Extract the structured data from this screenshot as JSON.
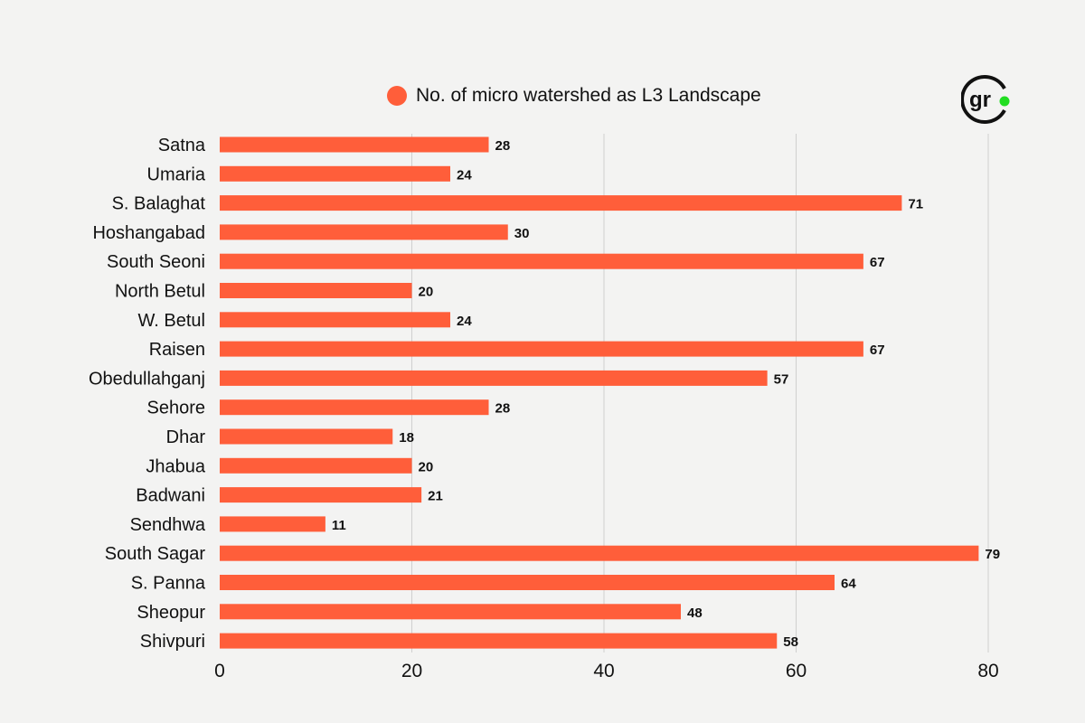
{
  "chart_data": {
    "type": "bar",
    "orientation": "horizontal",
    "title": "",
    "xlabel": "",
    "ylabel": "",
    "xlim": [
      0,
      80
    ],
    "xticks": [
      0,
      20,
      40,
      60,
      80
    ],
    "grid": true,
    "legend_position": "top-center",
    "series": [
      {
        "name": "No. of micro watershed as L3 Landscape",
        "color": "#ff5e3a"
      }
    ],
    "categories": [
      "Satna",
      "Umaria",
      "S. Balaghat",
      "Hoshangabad",
      "South Seoni",
      "North Betul",
      "W. Betul",
      "Raisen",
      "Obedullahganj",
      "Sehore",
      "Dhar",
      "Jhabua",
      "Badwani",
      "Sendhwa",
      "South Sagar",
      "S. Panna",
      "Sheopur",
      "Shivpuri"
    ],
    "values": [
      28,
      24,
      71,
      30,
      67,
      20,
      24,
      67,
      57,
      28,
      18,
      20,
      21,
      11,
      79,
      64,
      48,
      58
    ]
  },
  "logo": {
    "text": "gr",
    "accent": "#22dd22"
  }
}
